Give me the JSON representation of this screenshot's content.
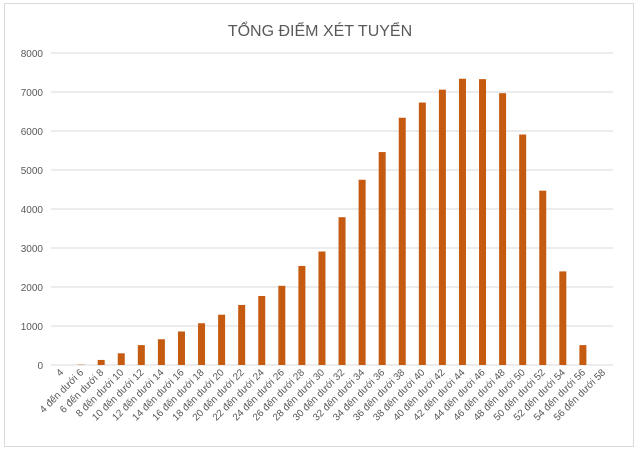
{
  "chart_data": {
    "type": "bar",
    "title": "TỔNG ĐIỂM XÉT TUYỂN",
    "xlabel": "",
    "ylabel": "",
    "ylim": [
      0,
      8000
    ],
    "yticks": [
      0,
      1000,
      2000,
      3000,
      4000,
      5000,
      6000,
      7000,
      8000
    ],
    "grid": true,
    "legend": "none",
    "bar_color": "#c55a11",
    "categories": [
      "4",
      "4 đến dưới 6",
      "6 đến dưới 8",
      "8 đến dưới 10",
      "10 đến dưới 12",
      "12 đến dưới 14",
      "14 đến dưới 16",
      "16 đến dưới 18",
      "18 đến dưới 20",
      "20 đến dưới 22",
      "22 đến dưới 24",
      "24 đến dưới 26",
      "26 đến dưới 28",
      "28 đến dưới 30",
      "30 đến dưới 32",
      "32 đến dưới 34",
      "34 đến dưới 36",
      "36 đến dưới 38",
      "38 đến dưới 40",
      "40 đến dưới 42",
      "42 đến dưới 44",
      "44 đến dưới 46",
      "46 đến dưới 48",
      "48 đến dưới 50",
      "50 đến dưới 52",
      "52 đến dưới 54",
      "54 đến dưới 56",
      "56 đến dưới 58"
    ],
    "values": [
      0,
      10,
      130,
      300,
      510,
      660,
      860,
      1070,
      1290,
      1540,
      1770,
      2030,
      2540,
      2910,
      3790,
      4750,
      5460,
      6340,
      6730,
      7060,
      7340,
      7330,
      6970,
      5910,
      4470,
      2400,
      510,
      0
    ]
  }
}
